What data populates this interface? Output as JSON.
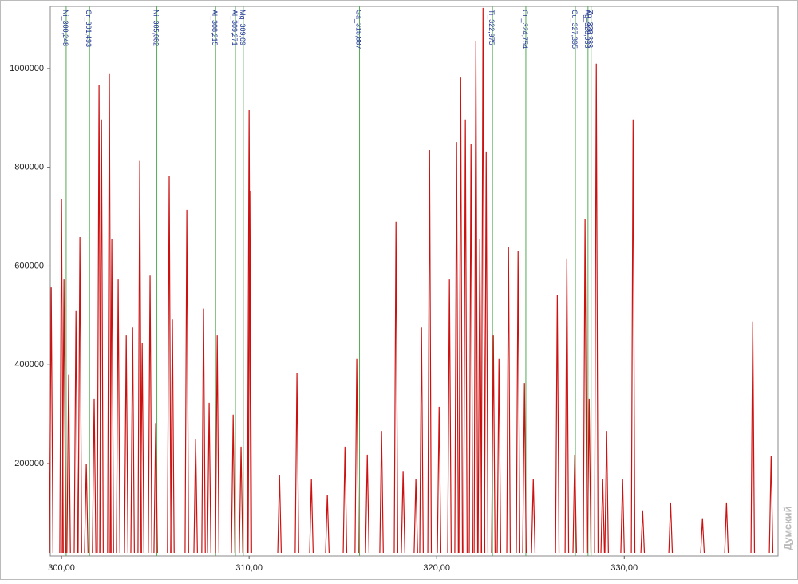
{
  "chart_data": {
    "type": "spectrum",
    "x": [
      299.45,
      300.0,
      300.13,
      300.38,
      300.77,
      300.98,
      301.32,
      301.74,
      302.0,
      302.13,
      302.55,
      302.68,
      303.02,
      303.45,
      303.79,
      304.17,
      304.3,
      304.72,
      305.02,
      305.74,
      305.91,
      306.68,
      307.15,
      307.57,
      307.87,
      308.3,
      309.15,
      309.57,
      310.0,
      310.04,
      311.62,
      312.55,
      313.32,
      314.17,
      315.11,
      315.74,
      316.3,
      317.06,
      317.83,
      318.21,
      318.89,
      319.19,
      319.62,
      320.13,
      320.68,
      321.06,
      321.28,
      321.53,
      321.83,
      322.09,
      322.3,
      322.47,
      322.64,
      323.02,
      323.32,
      323.83,
      324.34,
      324.68,
      325.15,
      326.43,
      326.94,
      327.36,
      327.91,
      328.13,
      328.51,
      328.85,
      329.06,
      329.91,
      330.47,
      330.98,
      332.47,
      334.17,
      335.45,
      336.85,
      337.83
    ],
    "values": [
      557000,
      735000,
      573000,
      380000,
      509000,
      659000,
      200000,
      331000,
      966000,
      897000,
      989000,
      654000,
      573000,
      460000,
      476000,
      813000,
      444000,
      581000,
      282000,
      783000,
      492000,
      714000,
      250000,
      514000,
      323000,
      460000,
      299000,
      234000,
      916000,
      751000,
      177000,
      383000,
      169000,
      137000,
      234000,
      412000,
      218000,
      266000,
      690000,
      185000,
      169000,
      476000,
      835000,
      315000,
      573000,
      851000,
      982000,
      897000,
      848000,
      1055000,
      654000,
      1123000,
      832000,
      460000,
      412000,
      638000,
      630000,
      363000,
      169000,
      541000,
      614000,
      218000,
      695000,
      331000,
      1010000,
      169000,
      266000,
      169000,
      897000,
      105000,
      121000,
      89000,
      121000,
      488000,
      215000
    ],
    "color": "#cc1111",
    "xlim": [
      299.4,
      338.2
    ],
    "ylim": [
      12500,
      1126000
    ],
    "xticks": [
      {
        "value": 300,
        "label": "300,00"
      },
      {
        "value": 310,
        "label": "310,00"
      },
      {
        "value": 320,
        "label": "320,00"
      },
      {
        "value": 330,
        "label": "330,00"
      }
    ],
    "yticks": [
      200000,
      400000,
      600000,
      800000,
      1000000
    ],
    "lines_color": "#55aa55",
    "lines": [
      {
        "label": "Ni_300,248",
        "x": 300.248
      },
      {
        "label": "Cr_301,493",
        "x": 301.493
      },
      {
        "label": "Ni_305,082",
        "x": 305.082
      },
      {
        "label": "Al_308,215",
        "x": 308.215
      },
      {
        "label": "Al_309,271",
        "x": 309.271
      },
      {
        "label": "Mg_309,69",
        "x": 309.69
      },
      {
        "label": "Ga_315,887",
        "x": 315.887
      },
      {
        "label": "Ti_322,975",
        "x": 322.975
      },
      {
        "label": "Cu_324,754",
        "x": 324.754
      },
      {
        "label": "Cu_327,395",
        "x": 327.395
      },
      {
        "label": "Ag_328,068",
        "x": 328.068
      },
      {
        "label": "Zn_328,233",
        "x": 328.233
      }
    ],
    "watermark": "Думский"
  }
}
